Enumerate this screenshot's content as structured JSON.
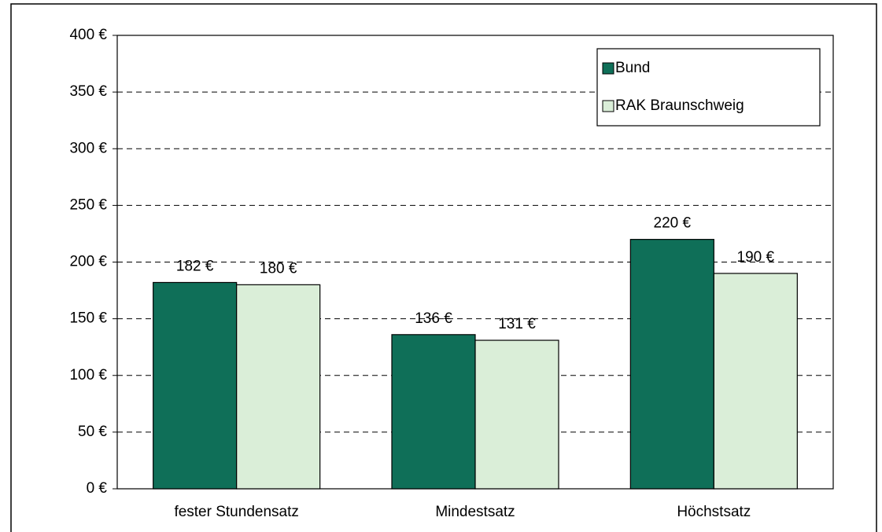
{
  "chart_data": {
    "type": "bar",
    "categories": [
      "fester Stundensatz",
      "Mindestsatz",
      "Höchstsatz"
    ],
    "series": [
      {
        "name": "Bund",
        "color": "#0f6f58",
        "values": [
          182,
          136,
          220
        ],
        "value_labels": [
          "182 €",
          "136 €",
          "220 €"
        ]
      },
      {
        "name": "RAK Braunschweig",
        "color": "#daeed8",
        "values": [
          180,
          131,
          190
        ],
        "value_labels": [
          "180 €",
          "131 €",
          "190 €"
        ]
      }
    ],
    "ylim": [
      0,
      400
    ],
    "yticks": [
      {
        "value": 0,
        "label": "0 €"
      },
      {
        "value": 50,
        "label": "50 €"
      },
      {
        "value": 100,
        "label": "100 €"
      },
      {
        "value": 150,
        "label": "150 €"
      },
      {
        "value": 200,
        "label": "200 €"
      },
      {
        "value": 250,
        "label": "250 €"
      },
      {
        "value": 300,
        "label": "300 €"
      },
      {
        "value": 350,
        "label": "350 €"
      },
      {
        "value": 400,
        "label": "400 €"
      }
    ],
    "grid": true,
    "legend": "top-right"
  }
}
